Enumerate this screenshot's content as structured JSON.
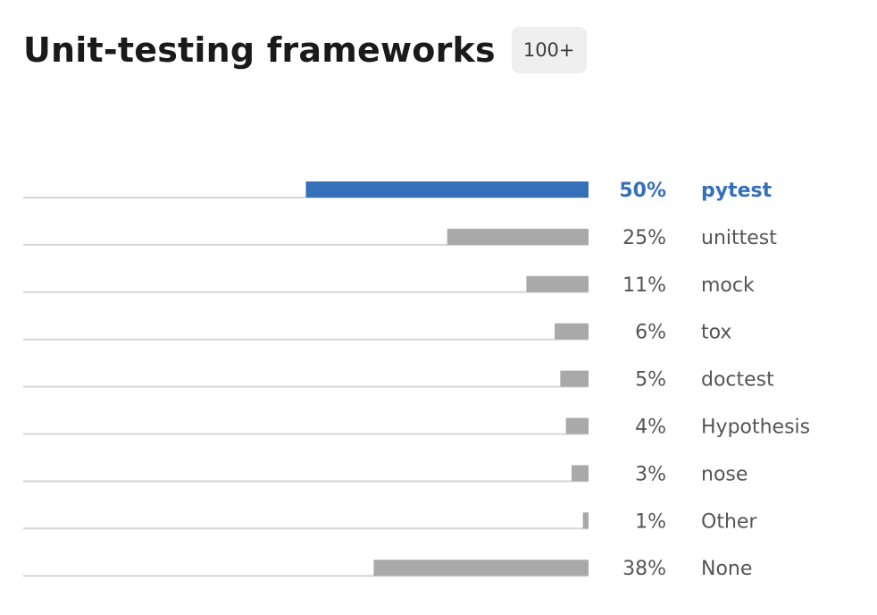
{
  "title": "Unit-testing frameworks",
  "badge": "100+",
  "colors": {
    "highlight": "#3570b8",
    "bar": "#a9a9a9",
    "track": "#d6d6d6",
    "label": "#555555"
  },
  "chart_data": {
    "type": "bar",
    "orientation": "horizontal",
    "categories": [
      "pytest",
      "unittest",
      "mock",
      "tox",
      "doctest",
      "Hypothesis",
      "nose",
      "Other",
      "None"
    ],
    "values": [
      50,
      25,
      11,
      6,
      5,
      4,
      3,
      1,
      38
    ],
    "value_labels": [
      "50%",
      "25%",
      "11%",
      "6%",
      "5%",
      "4%",
      "3%",
      "1%",
      "38%"
    ],
    "highlight_index": 0,
    "unit": "%",
    "xlim": [
      0,
      100
    ]
  }
}
